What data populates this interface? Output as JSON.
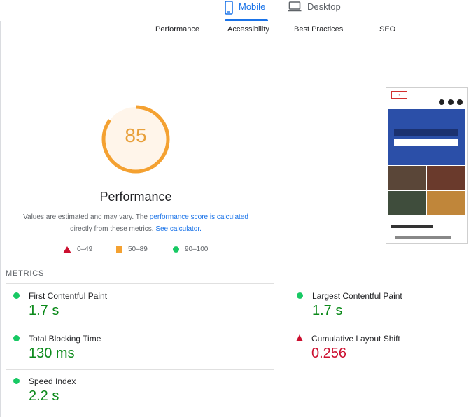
{
  "device_tabs": {
    "mobile": "Mobile",
    "desktop": "Desktop"
  },
  "category_tabs": [
    "Performance",
    "Accessibility",
    "Best Practices",
    "SEO"
  ],
  "gauge": {
    "score": "85",
    "fraction": 0.85,
    "title": "Performance",
    "color": "#f4a131"
  },
  "description": {
    "text1": "Values are estimated and may vary. The ",
    "link1": "performance score is calculated",
    "text2": "directly from these metrics. ",
    "link2": "See calculator."
  },
  "legend": {
    "red": "0–49",
    "orange": "50–89",
    "green": "90–100"
  },
  "metrics_label": "METRICS",
  "metrics": {
    "fcp": {
      "name": "First Contentful Paint",
      "value": "1.7 s"
    },
    "lcp": {
      "name": "Largest Contentful Paint",
      "value": "1.7 s"
    },
    "tbt": {
      "name": "Total Blocking Time",
      "value": "130 ms"
    },
    "cls": {
      "name": "Cumulative Layout Shift",
      "value": "0.256"
    },
    "si": {
      "name": "Speed Index",
      "value": "2.2 s"
    }
  },
  "colors": {
    "accent": "#1a73e8",
    "good": "#0c8a1b",
    "average": "#f4a131",
    "fail": "#cc0f2f"
  }
}
